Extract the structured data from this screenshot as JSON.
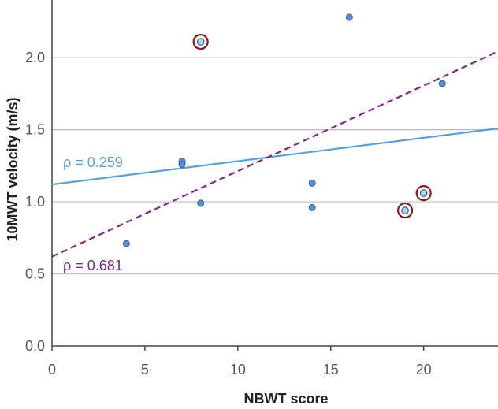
{
  "chart_data": {
    "type": "scatter",
    "title": "",
    "xlabel": "NBWT score",
    "ylabel": "10MWT velocity (m/s)",
    "xlim": [
      0,
      24
    ],
    "ylim": [
      0,
      2.4
    ],
    "x_ticks": [
      0,
      5,
      10,
      15,
      20
    ],
    "x_tick_labels": [
      "0",
      "5",
      "10",
      "15",
      "20"
    ],
    "y_ticks": [
      0,
      0.5,
      1.0,
      1.5,
      2.0
    ],
    "y_tick_labels": [
      "0.0",
      "0.5",
      "1.0",
      "1.5",
      "2.0"
    ],
    "grid": "horizontal",
    "points": [
      {
        "x": 4,
        "y": 0.71,
        "highlighted": false
      },
      {
        "x": 7,
        "y": 1.28,
        "highlighted": false
      },
      {
        "x": 7,
        "y": 1.26,
        "highlighted": false
      },
      {
        "x": 8,
        "y": 0.99,
        "highlighted": false
      },
      {
        "x": 8,
        "y": 2.11,
        "highlighted": true
      },
      {
        "x": 14,
        "y": 1.13,
        "highlighted": false
      },
      {
        "x": 14,
        "y": 0.96,
        "highlighted": false
      },
      {
        "x": 16,
        "y": 2.28,
        "highlighted": false
      },
      {
        "x": 19,
        "y": 0.94,
        "highlighted": true
      },
      {
        "x": 20,
        "y": 1.06,
        "highlighted": true
      },
      {
        "x": 21,
        "y": 1.82,
        "highlighted": false
      }
    ],
    "trend_lines": [
      {
        "name": "all",
        "label": "ρ = 0.259",
        "style": "solid",
        "color": "#5b9fd6",
        "intercept": 1.12,
        "slope": 0.0162
      },
      {
        "name": "subset",
        "label": "ρ = 0.681",
        "style": "dashed",
        "color": "#7b2a86",
        "intercept": 0.62,
        "slope": 0.0593
      }
    ],
    "colors": {
      "point_fill": "#5b8fcf",
      "point_stroke": "#2f5f9e",
      "highlight_fill": "#b8d3ee",
      "highlight_ring": "#8b1a1a",
      "axis": "#444444",
      "grid": "#bdbdbd"
    }
  }
}
